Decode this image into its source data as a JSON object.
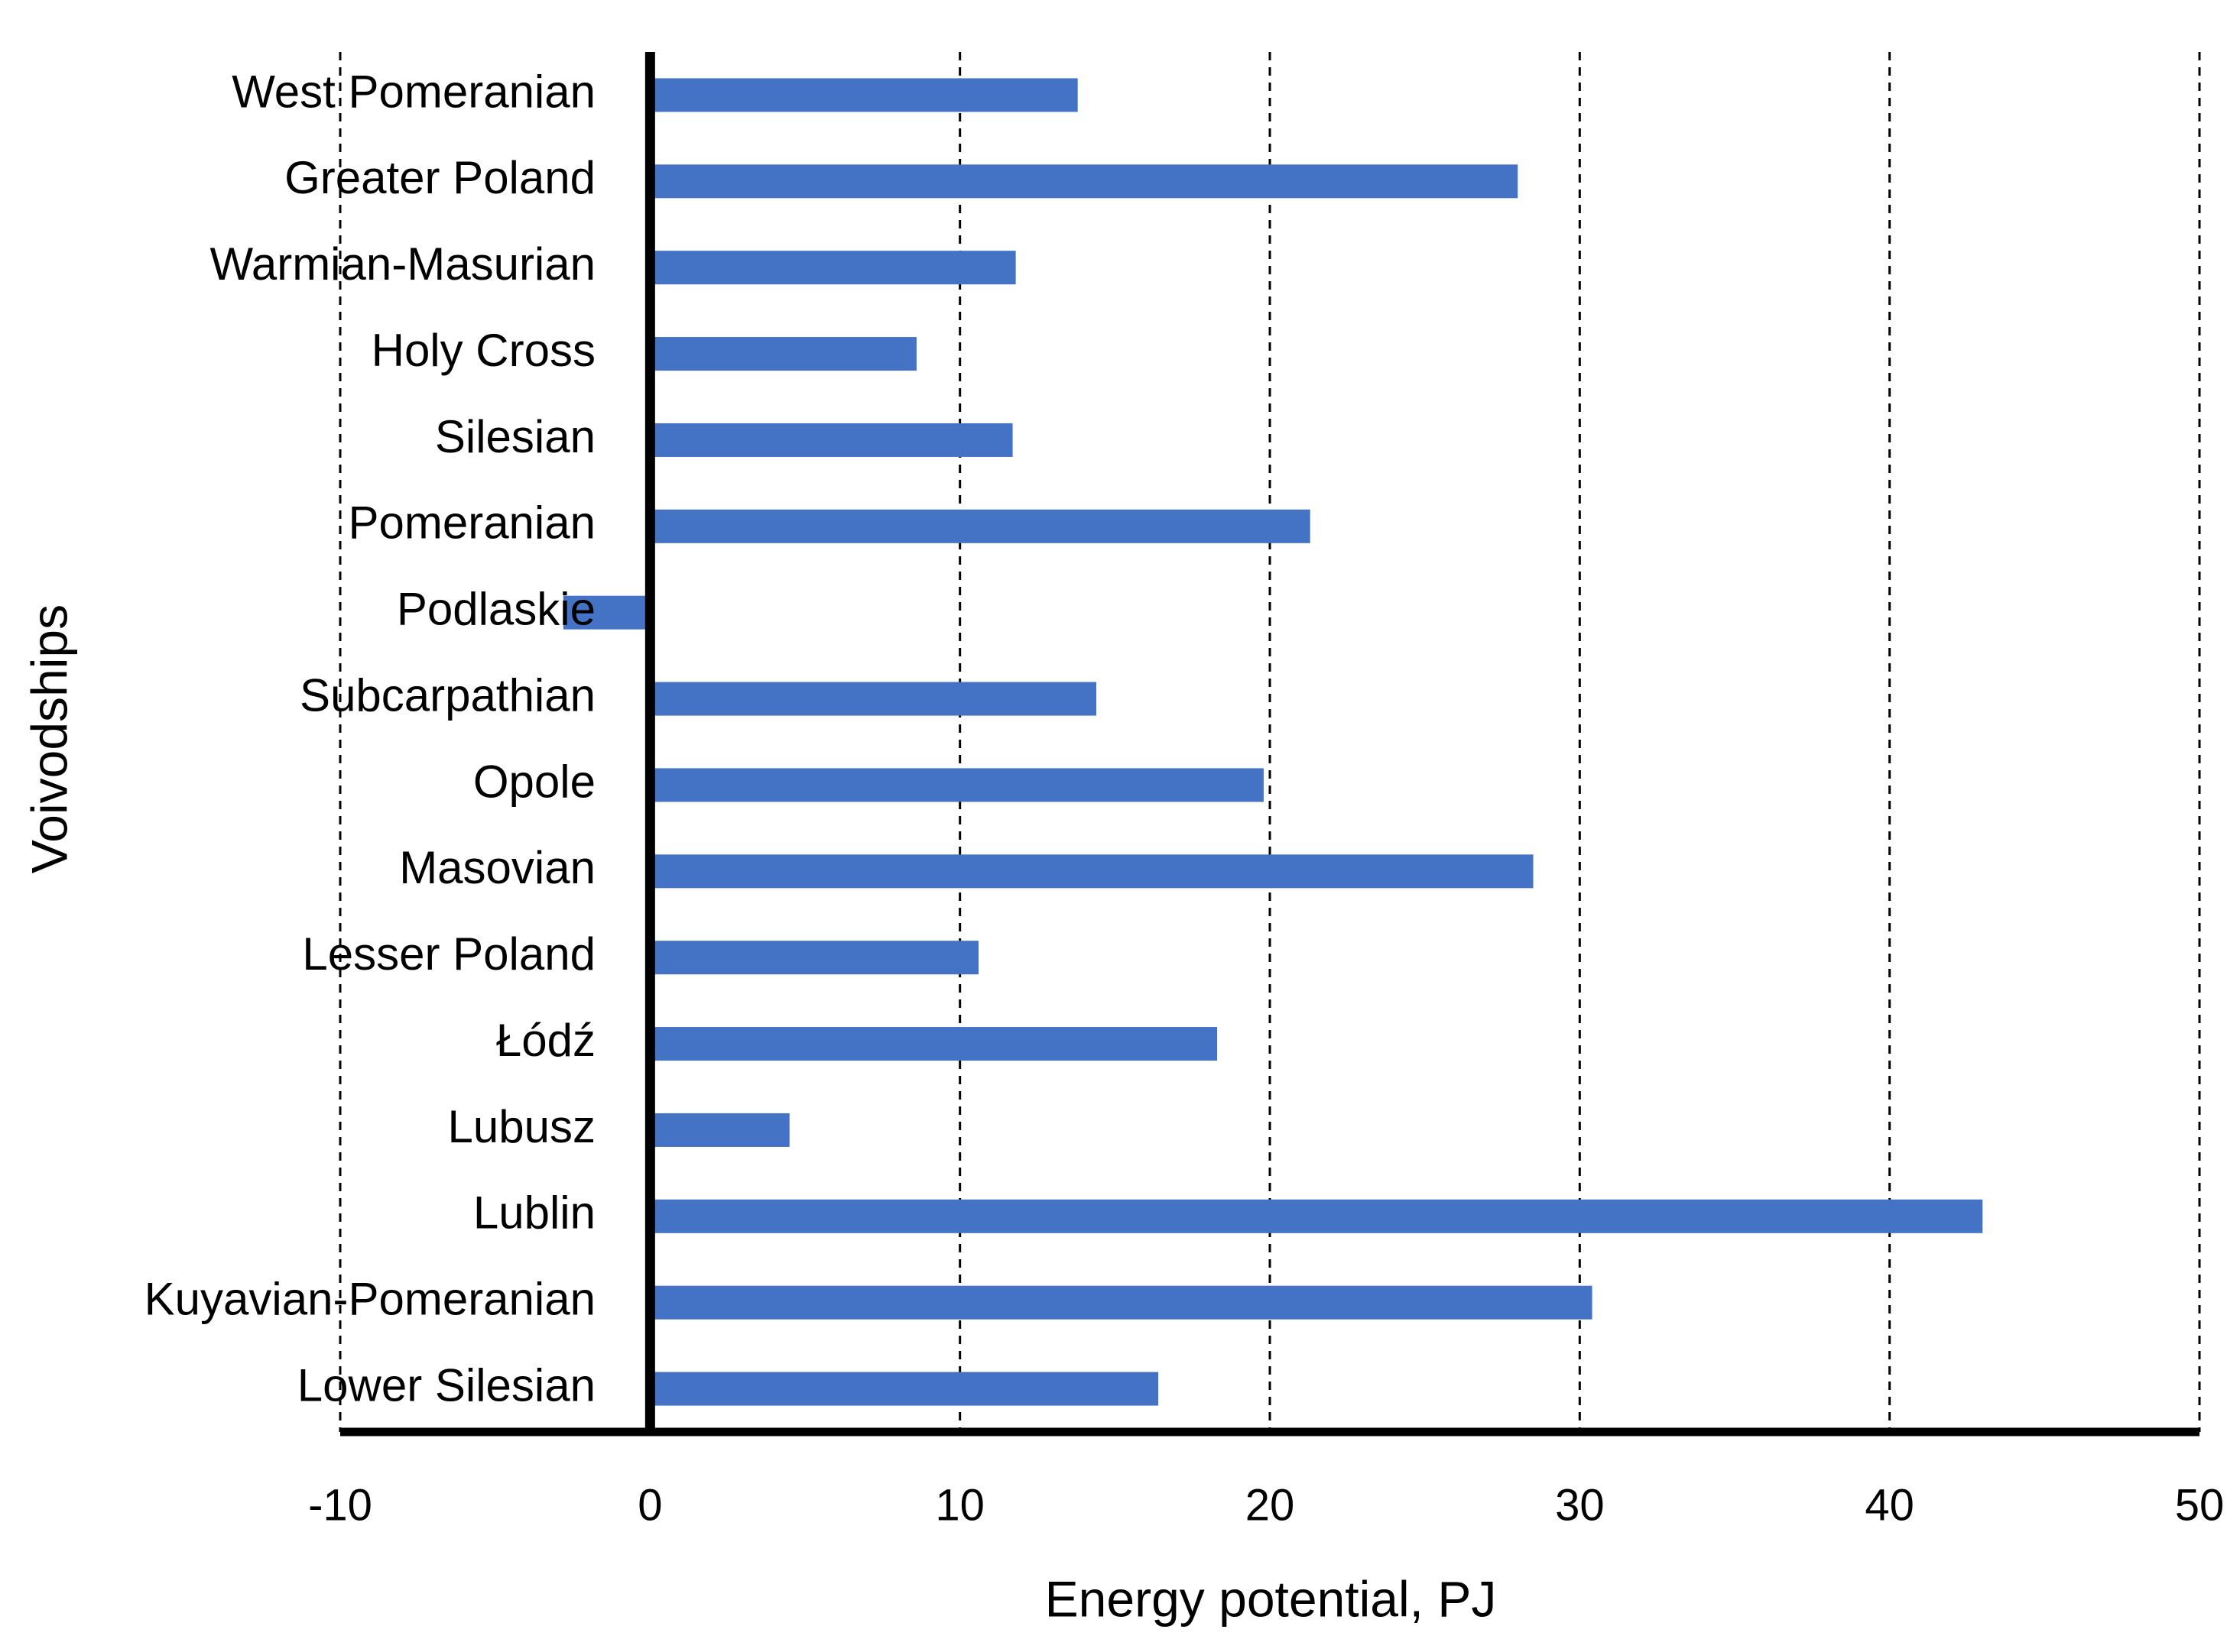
{
  "chart_data": {
    "type": "barh",
    "xlabel": "Energy potential, PJ",
    "ylabel": "Voivodships",
    "categories": [
      "West Pomeranian",
      "Greater Poland",
      "Warmian-Masurian",
      "Holy Cross",
      "Silesian",
      "Pomeranian",
      "Podlaskie",
      "Subcarpathian",
      "Opole",
      "Masovian",
      "Lesser Poland",
      "Łódź",
      "Lubusz",
      "Lublin",
      "Kuyavian-Pomeranian",
      "Lower Silesian"
    ],
    "values": [
      13.8,
      28.0,
      11.8,
      8.6,
      11.7,
      21.3,
      -2.8,
      14.4,
      19.8,
      28.5,
      10.6,
      18.3,
      4.5,
      43.0,
      30.4,
      16.4
    ],
    "color": "#4472c4",
    "xlim": [
      -10,
      50
    ],
    "xticks": [
      -10,
      0,
      10,
      20,
      30,
      40,
      50
    ],
    "grid": true
  }
}
